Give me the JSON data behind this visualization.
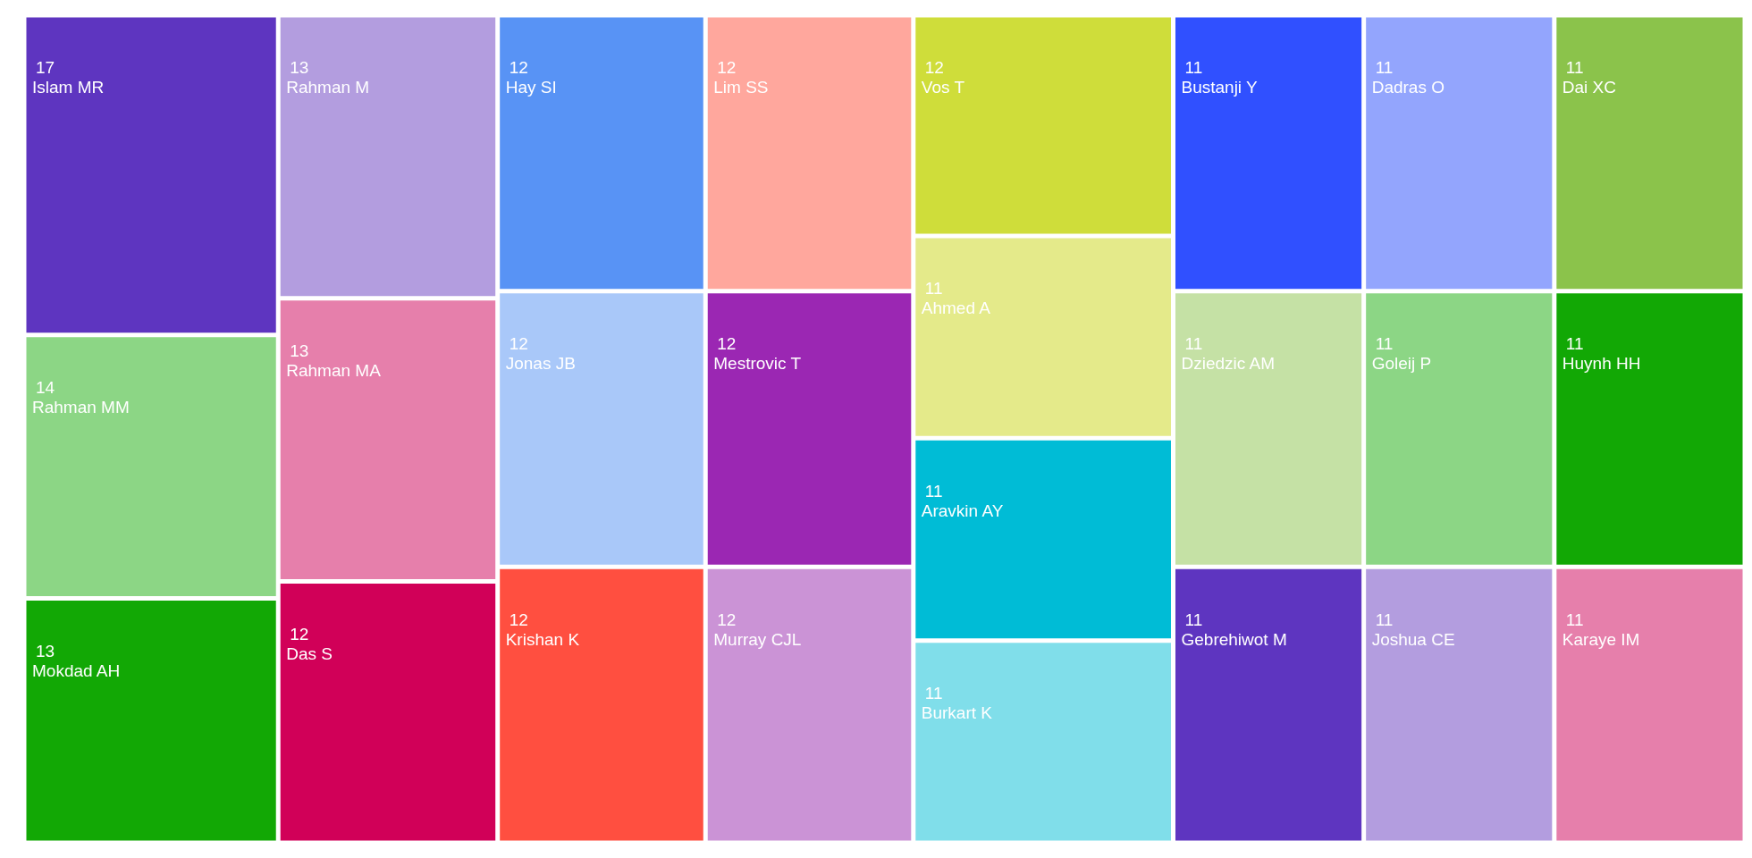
{
  "chart_data": {
    "type": "other",
    "data_labels": true,
    "categories": [
      "Islam MR",
      "Rahman MM",
      "Mokdad AH",
      "Rahman M",
      "Rahman MA",
      "Das S",
      "Hay SI",
      "Jonas JB",
      "Krishan K",
      "Lim SS",
      "Mestrovic T",
      "Murray CJL",
      "Vos T",
      "Ahmed A",
      "Aravkin AY",
      "Burkart K",
      "Bustanji Y",
      "Dadras O",
      "Dai XC",
      "Dziedzic AM",
      "Gebrehiwot M",
      "Goleij P",
      "Huynh HH",
      "Joshua CE",
      "Karaye IM"
    ],
    "values": [
      17,
      14,
      13,
      13,
      13,
      12,
      12,
      12,
      12,
      12,
      12,
      12,
      12,
      11,
      11,
      11,
      11,
      11,
      11,
      11,
      11,
      11,
      11,
      11,
      11
    ],
    "colors": [
      "#5e35c0",
      "#8cd685",
      "#12a805",
      "#b39ddf",
      "#e67fab",
      "#d10058",
      "#5893f5",
      "#a9c8f9",
      "#ff4f40",
      "#ffa79d",
      "#9b27b3",
      "#cb93d6",
      "#cfdd3a",
      "#e4ea8a",
      "#00bcd6",
      "#80deea",
      "#3050ff",
      "#93a5fd",
      "#8bc34b",
      "#c5e1a5",
      "#5e35c0",
      "#8cd685",
      "#12a805",
      "#b39ddf",
      "#e67fab"
    ]
  }
}
